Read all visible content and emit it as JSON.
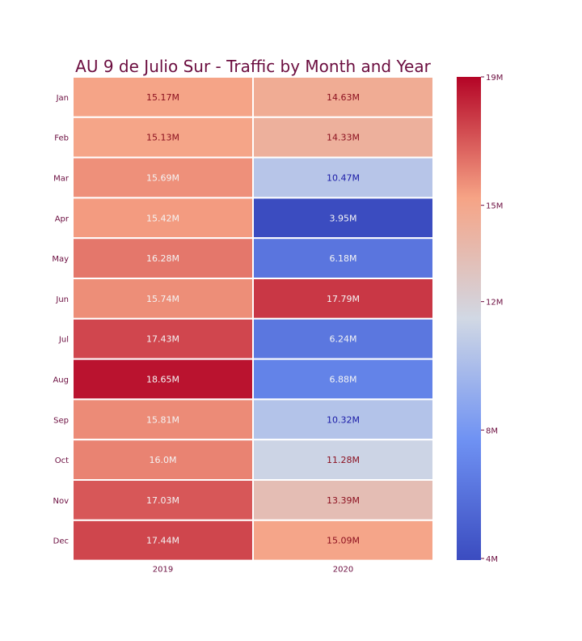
{
  "chart_data": {
    "type": "heatmap",
    "title": "AU 9 de Julio Sur - Traffic by Month and Year",
    "xlabel": "",
    "ylabel": "",
    "columns": [
      "2019",
      "2020"
    ],
    "rows": [
      "Jan",
      "Feb",
      "Mar",
      "Apr",
      "May",
      "Jun",
      "Jul",
      "Aug",
      "Sep",
      "Oct",
      "Nov",
      "Dec"
    ],
    "values": [
      [
        15.17,
        14.63
      ],
      [
        15.13,
        14.33
      ],
      [
        15.69,
        10.47
      ],
      [
        15.42,
        3.95
      ],
      [
        16.28,
        6.18
      ],
      [
        15.74,
        17.79
      ],
      [
        17.43,
        6.24
      ],
      [
        18.65,
        6.88
      ],
      [
        15.81,
        10.32
      ],
      [
        16.0,
        11.28
      ],
      [
        17.03,
        13.39
      ],
      [
        17.44,
        15.09
      ]
    ],
    "cell_labels": [
      [
        "15.17M",
        "14.63M"
      ],
      [
        "15.13M",
        "14.33M"
      ],
      [
        "15.69M",
        "10.47M"
      ],
      [
        "15.42M",
        "3.95M"
      ],
      [
        "16.28M",
        "6.18M"
      ],
      [
        "15.74M",
        "17.79M"
      ],
      [
        "17.43M",
        "6.24M"
      ],
      [
        "18.65M",
        "6.88M"
      ],
      [
        "15.81M",
        "10.32M"
      ],
      [
        "16.0M",
        "11.28M"
      ],
      [
        "17.03M",
        "13.39M"
      ],
      [
        "17.44M",
        "15.09M"
      ]
    ],
    "colorbar": {
      "vmin": 3.95,
      "vmax": 19.0,
      "ticks": [
        {
          "value": 19,
          "label": "19M"
        },
        {
          "value": 15,
          "label": "15M"
        },
        {
          "value": 12,
          "label": "12M"
        },
        {
          "value": 8,
          "label": "8M"
        },
        {
          "value": 4,
          "label": "4M"
        }
      ],
      "colormap": "coolwarm"
    },
    "colors": {
      "title": "#6b0d3f",
      "tick_text": "#6b0d3f",
      "label_dark": "#8b0f1f",
      "label_blue": "#1a1aa6",
      "label_light": "#f4f4f4"
    },
    "grid": false,
    "legend": "colorbar-right"
  }
}
